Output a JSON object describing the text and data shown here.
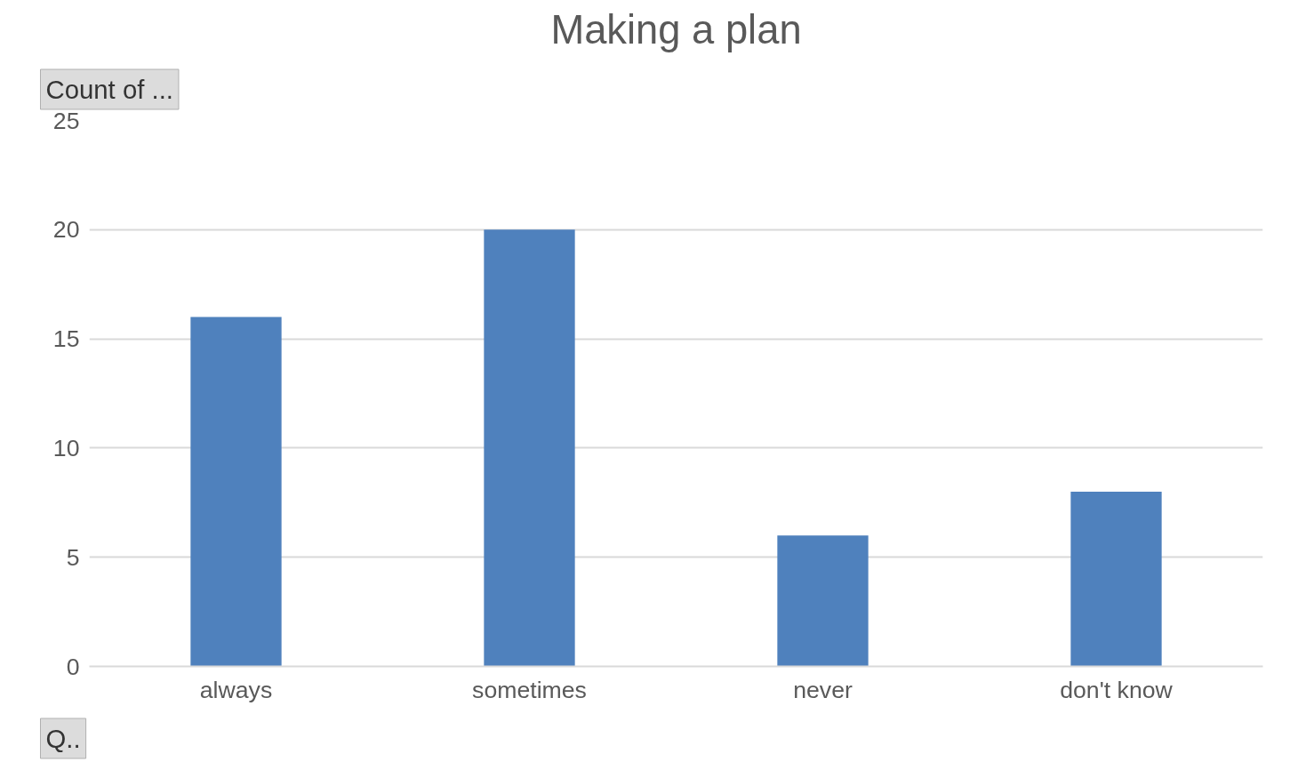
{
  "chart_data": {
    "type": "bar",
    "title": "Making a plan",
    "categories": [
      "always",
      "sometimes",
      "never",
      "don't know"
    ],
    "values": [
      16,
      20,
      6,
      8
    ],
    "color": "#4f81bd",
    "ylim": [
      0,
      25
    ],
    "yticks": [
      0,
      5,
      10,
      15,
      20,
      25
    ],
    "grid": "y",
    "annotations": [
      "Count of ...",
      "Q.."
    ]
  }
}
